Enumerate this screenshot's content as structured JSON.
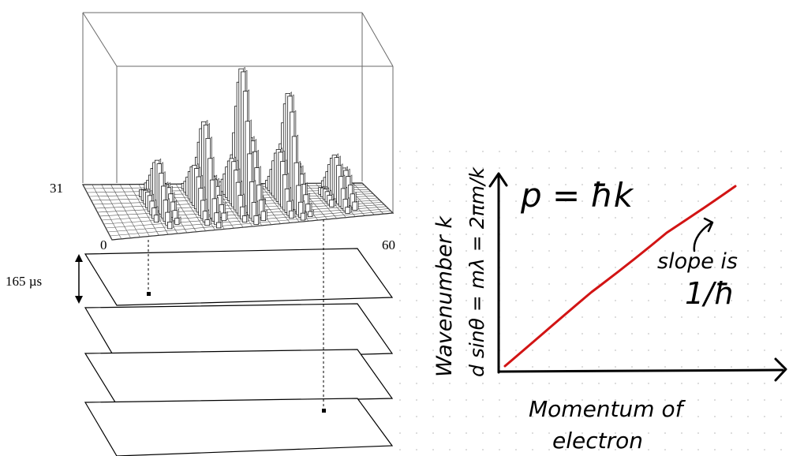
{
  "left_figure": {
    "z_tick_label": "31",
    "x_min_label": "0",
    "x_max_label": "60",
    "time_spacing_label": "165 µs"
  },
  "right_figure": {
    "formula": "p = ħk",
    "y_axis_label": "Wavenumber k",
    "y_axis_equation": "d sinθ = mλ = 2πm/k",
    "x_axis_label_line1": "Momentum  of",
    "x_axis_label_line2": "electron",
    "annotation_line1": "slope is",
    "annotation_line2": "1/ħ",
    "line_color": "#d21414"
  }
}
